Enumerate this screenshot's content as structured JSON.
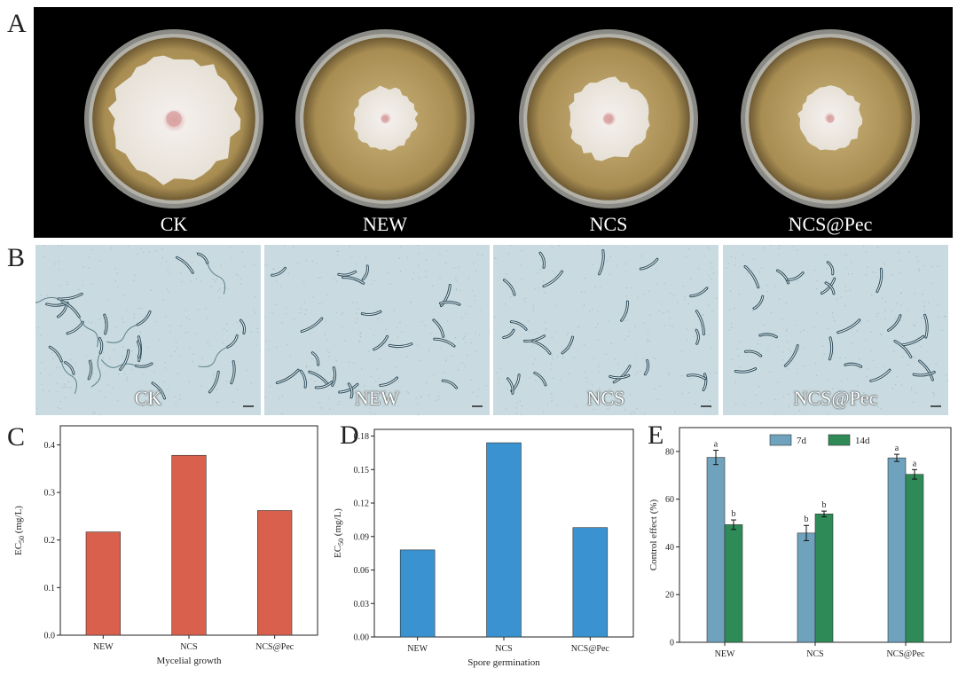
{
  "panels": {
    "a": {
      "letter": "A",
      "labels": [
        "CK",
        "NEW",
        "NCS",
        "NCS@Pec"
      ],
      "colony_relative_size": [
        0.72,
        0.36,
        0.46,
        0.36
      ]
    },
    "b": {
      "letter": "B",
      "labels": [
        "CK",
        "NEW",
        "NCS",
        "NCS@Pec"
      ]
    },
    "c": {
      "letter": "C"
    },
    "d": {
      "letter": "D"
    },
    "e": {
      "letter": "E"
    }
  },
  "chart_data": [
    {
      "type": "bar",
      "panel": "C",
      "categories": [
        "NEW",
        "NCS",
        "NCS@Pec"
      ],
      "values": [
        0.217,
        0.378,
        0.262
      ],
      "ylabel": "EC50 (mg/L)",
      "xlabel": "Mycelial growth",
      "ylim": [
        0,
        0.44
      ],
      "yticks": [
        "0.0",
        "0.1",
        "0.2",
        "0.3",
        "0.4"
      ],
      "color": "#d9604c"
    },
    {
      "type": "bar",
      "panel": "D",
      "categories": [
        "NEW",
        "NCS",
        "NCS@Pec"
      ],
      "values": [
        0.078,
        0.174,
        0.098
      ],
      "ylabel": "EC50 (mg/L)",
      "xlabel": "Spore germination",
      "ylim": [
        0,
        0.186
      ],
      "yticks": [
        "0.00",
        "0.03",
        "0.06",
        "0.09",
        "0.12",
        "0.15",
        "0.18"
      ],
      "color": "#3a93d0"
    },
    {
      "type": "bar",
      "panel": "E",
      "categories": [
        "NEW",
        "NCS",
        "NCS@Pec"
      ],
      "series": [
        {
          "name": "7d",
          "values": [
            77.5,
            45.8,
            77.3
          ],
          "errors": [
            3.0,
            3.2,
            1.5
          ],
          "letters": [
            "a",
            "b",
            "a"
          ],
          "color": "#6fa3bd"
        },
        {
          "name": "14d",
          "values": [
            49.3,
            53.8,
            70.4
          ],
          "errors": [
            2.0,
            1.2,
            2.0
          ],
          "letters": [
            "b",
            "b",
            "a"
          ],
          "color": "#2e8b57"
        }
      ],
      "ylabel": "Control effect (%)",
      "ylim": [
        0,
        90
      ],
      "yticks": [
        "0",
        "20",
        "40",
        "60",
        "80"
      ],
      "legend": "top"
    }
  ]
}
